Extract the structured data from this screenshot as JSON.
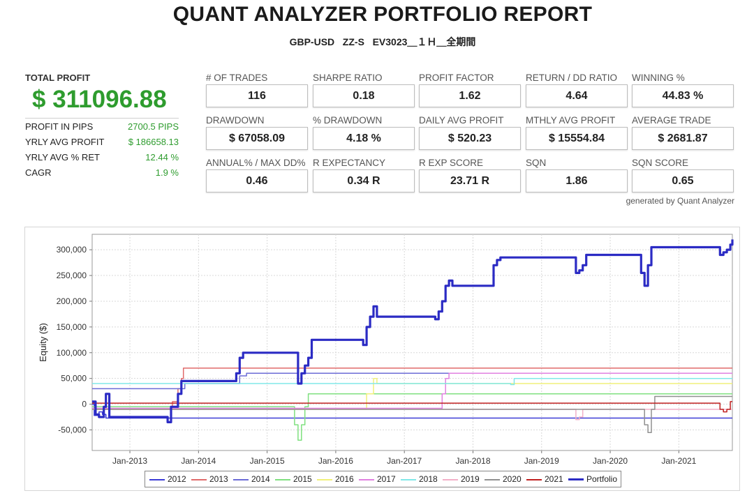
{
  "header": {
    "title": "QUANT ANALYZER PORTFOLIO REPORT",
    "subtitle": "GBP-USD   ZZ-S   EV3023＿１Ｈ＿全期間"
  },
  "summary": {
    "total_profit_label": "TOTAL PROFIT",
    "total_profit_value": "$ 311096.88",
    "rows": [
      {
        "label": "PROFIT IN PIPS",
        "value": "2700.5 PIPS"
      },
      {
        "label": "YRLY AVG PROFIT",
        "value": "$ 186658.13"
      },
      {
        "label": "YRLY AVG % RET",
        "value": "12.44 %"
      },
      {
        "label": "CAGR",
        "value": "1.9 %"
      }
    ]
  },
  "stats": [
    {
      "label": "# OF TRADES",
      "value": "116"
    },
    {
      "label": "SHARPE RATIO",
      "value": "0.18"
    },
    {
      "label": "PROFIT FACTOR",
      "value": "1.62"
    },
    {
      "label": "RETURN / DD RATIO",
      "value": "4.64"
    },
    {
      "label": "WINNING %",
      "value": "44.83 %"
    },
    {
      "label": "DRAWDOWN",
      "value": "$ 67058.09"
    },
    {
      "label": "% DRAWDOWN",
      "value": "4.18 %"
    },
    {
      "label": "DAILY AVG PROFIT",
      "value": "$ 520.23"
    },
    {
      "label": "MTHLY AVG PROFIT",
      "value": "$ 15554.84"
    },
    {
      "label": "AVERAGE TRADE",
      "value": "$ 2681.87"
    },
    {
      "label": "ANNUAL% / MAX DD%",
      "value": "0.46"
    },
    {
      "label": "R EXPECTANCY",
      "value": "0.34 R"
    },
    {
      "label": "R EXP SCORE",
      "value": "23.71 R"
    },
    {
      "label": "SQN",
      "value": "1.86"
    },
    {
      "label": "SQN SCORE",
      "value": "0.65"
    }
  ],
  "footer_note": "generated by Quant Analyzer",
  "chart_data": {
    "type": "line",
    "ylabel": "Equity ($)",
    "xlabel": "",
    "xlim": [
      2012.45,
      2021.78
    ],
    "ylim": [
      -90000,
      330000
    ],
    "x_ticks": [
      {
        "x": 2013.0,
        "label": "Jan-2013"
      },
      {
        "x": 2014.0,
        "label": "Jan-2014"
      },
      {
        "x": 2015.0,
        "label": "Jan-2015"
      },
      {
        "x": 2016.0,
        "label": "Jan-2016"
      },
      {
        "x": 2017.0,
        "label": "Jan-2017"
      },
      {
        "x": 2018.0,
        "label": "Jan-2018"
      },
      {
        "x": 2019.0,
        "label": "Jan-2019"
      },
      {
        "x": 2020.0,
        "label": "Jan-2020"
      },
      {
        "x": 2021.0,
        "label": "Jan-2021"
      }
    ],
    "y_ticks": [
      {
        "y": 300000,
        "label": "300,000"
      },
      {
        "y": 250000,
        "label": "250,000"
      },
      {
        "y": 200000,
        "label": "200,000"
      },
      {
        "y": 150000,
        "label": "150,000"
      },
      {
        "y": 100000,
        "label": "100,000"
      },
      {
        "y": 50000,
        "label": "50,000"
      },
      {
        "y": 0,
        "label": "0"
      },
      {
        "y": -50000,
        "label": "-50,000"
      }
    ],
    "grid": true,
    "legend_position": "bottom",
    "series": [
      {
        "name": "2012",
        "color": "#3b3bd6",
        "width": 1.5,
        "points": [
          [
            2012.45,
            0
          ],
          [
            2012.48,
            -22000
          ],
          [
            2012.55,
            -15000
          ],
          [
            2012.6,
            -20000
          ],
          [
            2012.65,
            -27000
          ],
          [
            2013.5,
            -27000
          ],
          [
            2013.6,
            -27000
          ],
          [
            2021.78,
            -27000
          ]
        ]
      },
      {
        "name": "2013",
        "color": "#e06a6a",
        "width": 1.5,
        "points": [
          [
            2012.45,
            -10000
          ],
          [
            2013.55,
            -10000
          ],
          [
            2013.62,
            5000
          ],
          [
            2013.7,
            30000
          ],
          [
            2013.75,
            50000
          ],
          [
            2013.78,
            70000
          ],
          [
            2021.78,
            70000
          ]
        ]
      },
      {
        "name": "2014",
        "color": "#6b6bd6",
        "width": 1.5,
        "points": [
          [
            2012.45,
            30000
          ],
          [
            2013.75,
            30000
          ],
          [
            2013.8,
            40000
          ],
          [
            2014.5,
            40000
          ],
          [
            2014.6,
            55000
          ],
          [
            2014.7,
            60000
          ],
          [
            2015.4,
            60000
          ],
          [
            2015.45,
            40000
          ],
          [
            2015.5,
            60000
          ],
          [
            2021.78,
            60000
          ]
        ]
      },
      {
        "name": "2015",
        "color": "#7fe07f",
        "width": 1.5,
        "points": [
          [
            2012.45,
            -5000
          ],
          [
            2015.3,
            -5000
          ],
          [
            2015.4,
            -40000
          ],
          [
            2015.45,
            -70000
          ],
          [
            2015.5,
            -40000
          ],
          [
            2015.55,
            -5000
          ],
          [
            2015.6,
            20000
          ],
          [
            2021.78,
            20000
          ]
        ]
      },
      {
        "name": "2016",
        "color": "#f0f07a",
        "width": 1.5,
        "points": [
          [
            2012.45,
            -10000
          ],
          [
            2016.35,
            -10000
          ],
          [
            2016.45,
            20000
          ],
          [
            2016.55,
            50000
          ],
          [
            2016.6,
            40000
          ],
          [
            2021.78,
            40000
          ]
        ]
      },
      {
        "name": "2017",
        "color": "#e080e0",
        "width": 1.5,
        "points": [
          [
            2012.45,
            -8000
          ],
          [
            2017.5,
            -8000
          ],
          [
            2017.55,
            20000
          ],
          [
            2017.6,
            50000
          ],
          [
            2017.65,
            60000
          ],
          [
            2021.78,
            60000
          ]
        ]
      },
      {
        "name": "2018",
        "color": "#80e8e8",
        "width": 1.5,
        "points": [
          [
            2012.45,
            40000
          ],
          [
            2018.5,
            40000
          ],
          [
            2018.55,
            38000
          ],
          [
            2018.6,
            50000
          ],
          [
            2021.78,
            50000
          ]
        ]
      },
      {
        "name": "2019",
        "color": "#f2b0c8",
        "width": 1.5,
        "points": [
          [
            2012.45,
            -10000
          ],
          [
            2019.45,
            -10000
          ],
          [
            2019.5,
            -30000
          ],
          [
            2019.55,
            -25000
          ],
          [
            2019.6,
            -10000
          ],
          [
            2021.78,
            -10000
          ]
        ]
      },
      {
        "name": "2020",
        "color": "#909090",
        "width": 1.5,
        "points": [
          [
            2012.45,
            -10000
          ],
          [
            2020.45,
            -10000
          ],
          [
            2020.5,
            -40000
          ],
          [
            2020.55,
            -55000
          ],
          [
            2020.6,
            -10000
          ],
          [
            2020.65,
            15000
          ],
          [
            2021.78,
            15000
          ]
        ]
      },
      {
        "name": "2021",
        "color": "#c02020",
        "width": 1.5,
        "points": [
          [
            2012.45,
            2000
          ],
          [
            2021.55,
            2000
          ],
          [
            2021.6,
            -10000
          ],
          [
            2021.65,
            -15000
          ],
          [
            2021.7,
            -10000
          ],
          [
            2021.75,
            5000
          ],
          [
            2021.78,
            5000
          ]
        ]
      },
      {
        "name": "Portfolio",
        "color": "#2b2bc4",
        "width": 3.2,
        "points": [
          [
            2012.45,
            5000
          ],
          [
            2012.5,
            -20000
          ],
          [
            2012.55,
            -25000
          ],
          [
            2012.62,
            -5000
          ],
          [
            2012.65,
            20000
          ],
          [
            2012.7,
            -25000
          ],
          [
            2013.5,
            -25000
          ],
          [
            2013.55,
            -35000
          ],
          [
            2013.6,
            -5000
          ],
          [
            2013.7,
            20000
          ],
          [
            2013.75,
            45000
          ],
          [
            2014.5,
            45000
          ],
          [
            2014.55,
            60000
          ],
          [
            2014.6,
            90000
          ],
          [
            2014.65,
            100000
          ],
          [
            2015.4,
            100000
          ],
          [
            2015.45,
            40000
          ],
          [
            2015.5,
            60000
          ],
          [
            2015.55,
            75000
          ],
          [
            2015.6,
            90000
          ],
          [
            2015.65,
            125000
          ],
          [
            2016.35,
            125000
          ],
          [
            2016.4,
            115000
          ],
          [
            2016.45,
            150000
          ],
          [
            2016.5,
            170000
          ],
          [
            2016.55,
            190000
          ],
          [
            2016.6,
            170000
          ],
          [
            2017.4,
            170000
          ],
          [
            2017.45,
            165000
          ],
          [
            2017.5,
            180000
          ],
          [
            2017.55,
            200000
          ],
          [
            2017.6,
            230000
          ],
          [
            2017.65,
            240000
          ],
          [
            2017.7,
            230000
          ],
          [
            2018.25,
            230000
          ],
          [
            2018.3,
            270000
          ],
          [
            2018.35,
            280000
          ],
          [
            2018.4,
            285000
          ],
          [
            2019.45,
            285000
          ],
          [
            2019.5,
            255000
          ],
          [
            2019.55,
            260000
          ],
          [
            2019.6,
            270000
          ],
          [
            2019.65,
            290000
          ],
          [
            2020.4,
            290000
          ],
          [
            2020.45,
            255000
          ],
          [
            2020.5,
            230000
          ],
          [
            2020.55,
            270000
          ],
          [
            2020.6,
            305000
          ],
          [
            2021.55,
            305000
          ],
          [
            2021.6,
            290000
          ],
          [
            2021.65,
            295000
          ],
          [
            2021.7,
            300000
          ],
          [
            2021.75,
            310000
          ],
          [
            2021.78,
            320000
          ]
        ]
      }
    ]
  }
}
